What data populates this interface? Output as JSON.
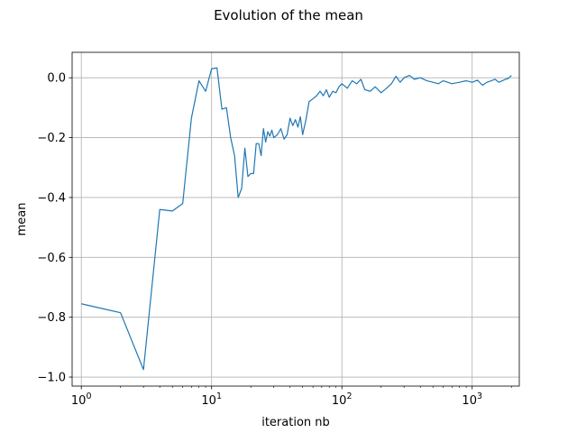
{
  "chart_data": {
    "type": "line",
    "title": "Evolution of the mean",
    "xlabel": "iteration nb",
    "ylabel": "mean",
    "xscale": "log",
    "xlim": [
      0.85,
      2300
    ],
    "ylim": [
      -1.03,
      0.085
    ],
    "grid": true,
    "line_color": "#1f77b4",
    "x_ticks": [
      {
        "value": 1,
        "base": "10",
        "exp": "0"
      },
      {
        "value": 10,
        "base": "10",
        "exp": "1"
      },
      {
        "value": 100,
        "base": "10",
        "exp": "2"
      },
      {
        "value": 1000,
        "base": "10",
        "exp": "3"
      }
    ],
    "y_ticks": [
      {
        "value": 0.0,
        "label": "0.0"
      },
      {
        "value": -0.2,
        "label": "−0.2"
      },
      {
        "value": -0.4,
        "label": "−0.4"
      },
      {
        "value": -0.6,
        "label": "−0.6"
      },
      {
        "value": -0.8,
        "label": "−0.8"
      },
      {
        "value": -1.0,
        "label": "−1.0"
      }
    ],
    "series": [
      {
        "x": [
          1,
          2,
          3,
          4,
          5,
          6,
          7,
          8,
          9,
          10,
          11,
          12,
          13,
          14,
          15,
          16,
          17,
          18,
          19,
          20,
          21,
          22,
          23,
          24,
          25,
          26,
          27,
          28,
          29,
          30,
          32,
          34,
          36,
          38,
          40,
          42,
          44,
          46,
          48,
          50,
          53,
          56,
          60,
          64,
          68,
          72,
          76,
          80,
          85,
          90,
          95,
          100,
          110,
          120,
          130,
          140,
          150,
          165,
          180,
          200,
          220,
          240,
          260,
          280,
          300,
          330,
          360,
          400,
          450,
          500,
          550,
          600,
          700,
          800,
          900,
          1000,
          1100,
          1200,
          1300,
          1400,
          1500,
          1600,
          1700,
          1800,
          1900,
          2000
        ],
        "y": [
          -0.755,
          -0.785,
          -0.975,
          -0.44,
          -0.445,
          -0.42,
          -0.135,
          -0.01,
          -0.045,
          0.03,
          0.033,
          -0.105,
          -0.1,
          -0.2,
          -0.26,
          -0.4,
          -0.37,
          -0.235,
          -0.33,
          -0.32,
          -0.32,
          -0.22,
          -0.22,
          -0.26,
          -0.17,
          -0.215,
          -0.18,
          -0.195,
          -0.175,
          -0.2,
          -0.19,
          -0.17,
          -0.205,
          -0.19,
          -0.135,
          -0.16,
          -0.14,
          -0.165,
          -0.13,
          -0.19,
          -0.14,
          -0.08,
          -0.07,
          -0.06,
          -0.045,
          -0.06,
          -0.04,
          -0.065,
          -0.045,
          -0.05,
          -0.03,
          -0.02,
          -0.035,
          -0.01,
          -0.02,
          -0.005,
          -0.04,
          -0.045,
          -0.03,
          -0.05,
          -0.035,
          -0.02,
          0.005,
          -0.015,
          0.0,
          0.008,
          -0.005,
          0.0,
          -0.01,
          -0.015,
          -0.02,
          -0.01,
          -0.02,
          -0.015,
          -0.01,
          -0.015,
          -0.008,
          -0.025,
          -0.015,
          -0.01,
          -0.005,
          -0.015,
          -0.01,
          -0.005,
          -0.002,
          0.008
        ]
      }
    ]
  }
}
